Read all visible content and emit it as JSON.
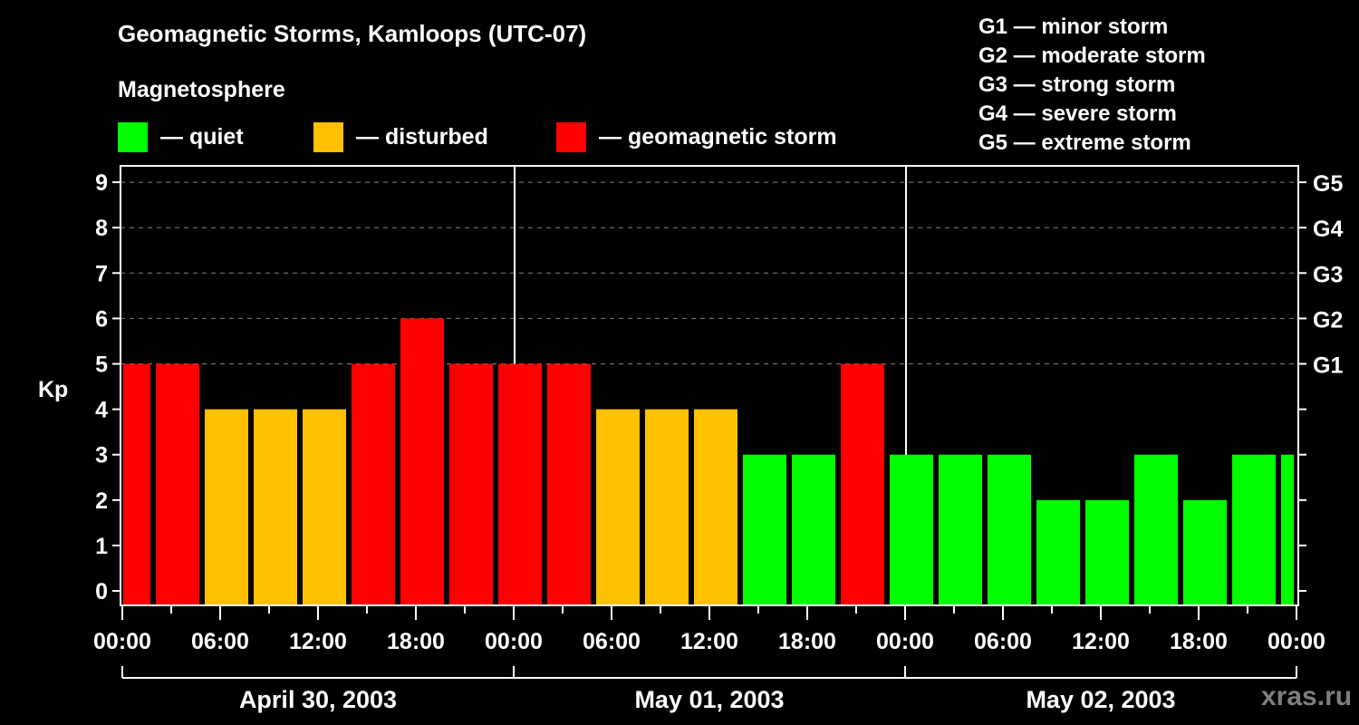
{
  "header": {
    "title": "Geomagnetic Storms, Kamloops (UTC-07)",
    "subtitle": "Magnetosphere"
  },
  "legend": [
    {
      "label": "— quiet",
      "color": "#00ff00"
    },
    {
      "label": "— disturbed",
      "color": "#ffc000"
    },
    {
      "label": "— geomagnetic storm",
      "color": "#ff0000"
    }
  ],
  "g_scale": [
    "G1 — minor storm",
    "G2 — moderate storm",
    "G3 — strong storm",
    "G4 — severe storm",
    "G5 — extreme storm"
  ],
  "watermark": "xras.ru",
  "colors": {
    "quiet": "#00ff00",
    "disturbed": "#ffc000",
    "storm": "#ff0000",
    "grid": "#808080",
    "axis": "#ffffff",
    "background": "#000000"
  },
  "chart_data": {
    "type": "bar",
    "title": "Geomagnetic Storms, Kamloops (UTC-07)",
    "xlabel": "",
    "ylabel": "Kp",
    "ylim": [
      0,
      9
    ],
    "yticks": [
      0,
      1,
      2,
      3,
      4,
      5,
      6,
      7,
      8,
      9
    ],
    "right_axis_labels": [
      {
        "kp": 5,
        "label": "G1"
      },
      {
        "kp": 6,
        "label": "G2"
      },
      {
        "kp": 7,
        "label": "G3"
      },
      {
        "kp": 8,
        "label": "G4"
      },
      {
        "kp": 9,
        "label": "G5"
      }
    ],
    "grid": "dashed horizontal at Kp 5-9",
    "x_tick_labels": [
      "00:00",
      "06:00",
      "12:00",
      "18:00",
      "00:00",
      "06:00",
      "12:00",
      "18:00",
      "00:00",
      "06:00",
      "12:00",
      "18:00",
      "00:00"
    ],
    "days": [
      "April 30, 2003",
      "May 01, 2003",
      "May 02, 2003"
    ],
    "bar_interval_hours": 3,
    "first_bar_start_hour": -1,
    "x_hours": [
      -1,
      2,
      5,
      8,
      11,
      14,
      17,
      20,
      23,
      26,
      29,
      32,
      35,
      38,
      41,
      44,
      47,
      50,
      53,
      56,
      59,
      62,
      65,
      68,
      71
    ],
    "values": [
      5,
      5,
      4,
      4,
      4,
      5,
      6,
      5,
      5,
      5,
      4,
      4,
      4,
      3,
      3,
      5,
      3,
      3,
      3,
      2,
      2,
      3,
      2,
      3,
      3
    ],
    "categories_by_color": "Kp<=3 quiet (green), Kp=4 disturbed (yellow), Kp>=5 storm (red)"
  }
}
